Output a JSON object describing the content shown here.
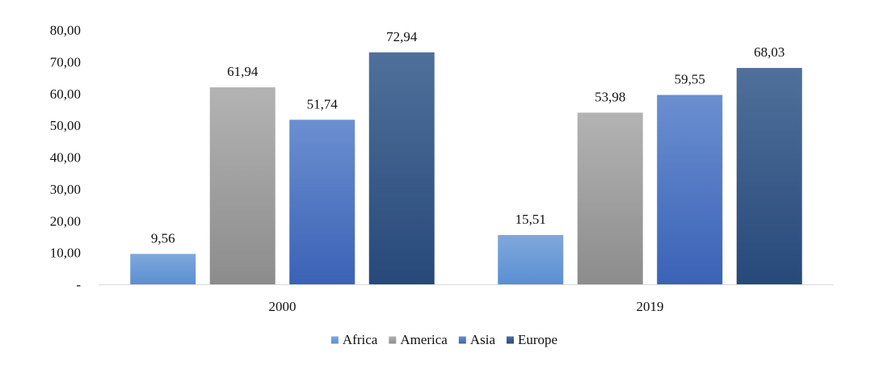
{
  "chart_data": {
    "type": "bar",
    "title": "",
    "xlabel": "",
    "ylabel": "",
    "categories": [
      "2000",
      "2019"
    ],
    "series": [
      {
        "name": "Africa",
        "values": [
          9.56,
          15.51
        ],
        "labels": [
          "9,56",
          "15,51"
        ],
        "color_top": "#7fa8dc",
        "color_bottom": "#5b8fd2"
      },
      {
        "name": "America",
        "values": [
          61.94,
          53.98
        ],
        "labels": [
          "61,94",
          "53,98"
        ],
        "color_top": "#b3b3b3",
        "color_bottom": "#8c8c8c"
      },
      {
        "name": "Asia",
        "values": [
          51.74,
          59.55
        ],
        "labels": [
          "51,74",
          "59,55"
        ],
        "color_top": "#6b8fd0",
        "color_bottom": "#3a62b6"
      },
      {
        "name": "Europe",
        "values": [
          72.94,
          68.03
        ],
        "labels": [
          "72,94",
          "68,03"
        ],
        "color_top": "#4f709a",
        "color_bottom": "#27497a"
      }
    ],
    "ylim": [
      0,
      80
    ],
    "yticks": [
      0,
      10,
      20,
      30,
      40,
      50,
      60,
      70,
      80
    ],
    "ytick_labels": [
      "-",
      "10,00",
      "20,00",
      "30,00",
      "40,00",
      "50,00",
      "60,00",
      "70,00",
      "80,00"
    ],
    "grid": false,
    "legend_position": "bottom"
  }
}
